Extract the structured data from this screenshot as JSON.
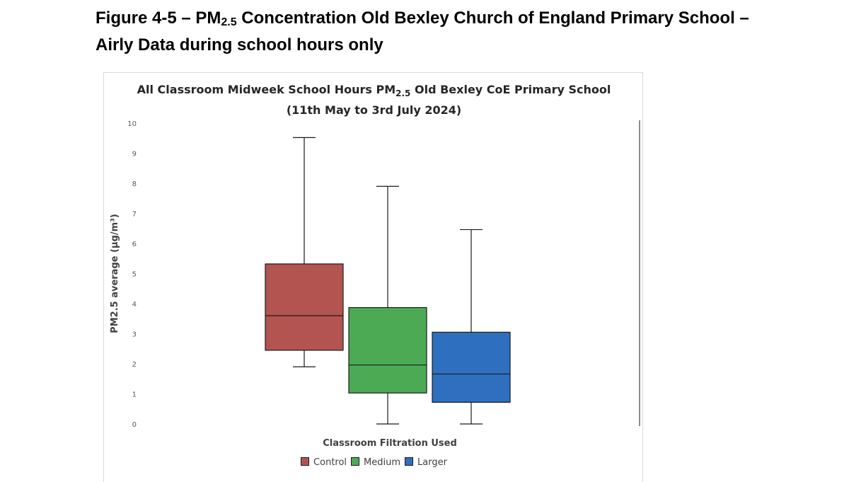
{
  "caption": {
    "prefix": "Figure 4-5 – PM",
    "subscript": "2.5",
    "suffix": " Concentration Old Bexley Church of England Primary School –",
    "line2": "Airly Data during school hours only"
  },
  "chart_data": {
    "type": "boxplot",
    "title": {
      "prefix": "All Classroom Midweek School Hours PM",
      "subscript": "2.5",
      "suffix": " Old Bexley CoE Primary School",
      "line2": "(11th May to 3rd July 2024)"
    },
    "xlabel": "Classroom Filtration Used",
    "ylabel": "PM2.5 average (µg/m³)",
    "ylim": [
      0,
      10
    ],
    "yticks": [
      "0",
      "1",
      "2",
      "3",
      "4",
      "5",
      "6",
      "7",
      "8",
      "9",
      "10"
    ],
    "legend_position": "bottom",
    "grid": false,
    "series": [
      {
        "name": "Control",
        "color": "#b35450",
        "min": 1.9,
        "q1": 2.45,
        "median": 3.6,
        "q3": 5.32,
        "max": 9.52
      },
      {
        "name": "Medium",
        "color": "#4caa55",
        "min": 0.0,
        "q1": 1.03,
        "median": 1.96,
        "q3": 3.87,
        "max": 7.9
      },
      {
        "name": "Larger",
        "color": "#2f6fbf",
        "min": 0.0,
        "q1": 0.72,
        "median": 1.66,
        "q3": 3.05,
        "max": 6.46
      }
    ]
  }
}
